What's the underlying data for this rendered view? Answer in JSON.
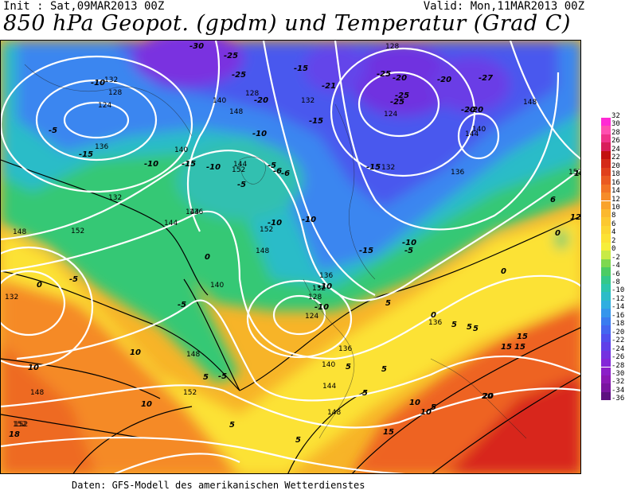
{
  "header": {
    "init": "Init : Sat,09MAR2013 00Z",
    "valid": "Valid: Mon,11MAR2013 00Z",
    "title": "850 hPa Geopot. (gpdm) und Temperatur (Grad C)"
  },
  "footer": {
    "source": "Daten: GFS-Modell des amerikanischen Wetterdienstes"
  },
  "legend": {
    "values": [
      "32",
      "30",
      "28",
      "26",
      "24",
      "22",
      "20",
      "18",
      "16",
      "14",
      "12",
      "10",
      "8",
      "6",
      "4",
      "2",
      "0",
      "-2",
      "-4",
      "-6",
      "-8",
      "-10",
      "-12",
      "-14",
      "-16",
      "-18",
      "-20",
      "-22",
      "-24",
      "-26",
      "-28",
      "-30",
      "-32",
      "-34",
      "-36"
    ],
    "colors": [
      "#ff2ad4",
      "#ff4fb0",
      "#f0338a",
      "#d81e5b",
      "#c21010",
      "#d42a18",
      "#e0401c",
      "#ea5a22",
      "#f27426",
      "#f68c2a",
      "#f9a32c",
      "#fbb82e",
      "#fcc830",
      "#fcd632",
      "#fce234",
      "#f6ee3a",
      "#c8ea46",
      "#7ed850",
      "#4ccc64",
      "#34c88a",
      "#2cc6aa",
      "#2cbcc8",
      "#30aee0",
      "#3596ec",
      "#3a7cf0",
      "#4466f0",
      "#5050ee",
      "#6040e8",
      "#7432e0",
      "#8426d8",
      "#8c1ec8",
      "#8a18b4",
      "#7a14a0",
      "#5e1080"
    ]
  },
  "map": {
    "geopotential_labels": [
      "132",
      "128",
      "124",
      "136",
      "140",
      "144",
      "148",
      "152",
      "140",
      "148",
      "152",
      "128",
      "132",
      "136",
      "144",
      "148",
      "152",
      "132",
      "128",
      "124",
      "132",
      "136",
      "140",
      "144",
      "148",
      "152",
      "136",
      "132",
      "140",
      "144",
      "128",
      "124",
      "136",
      "148",
      "144",
      "152",
      "148",
      "152",
      "152",
      "136",
      "148",
      "140",
      "132"
    ],
    "temperature_labels": [
      "-30",
      "-25",
      "-25",
      "-20",
      "-25",
      "-20",
      "-15",
      "-21",
      "-25",
      "-25",
      "-20",
      "-20",
      "-27",
      "-20",
      "-15",
      "-10",
      "-10",
      "-5",
      "-15",
      "-10",
      "-15",
      "-10",
      "-10",
      "-15",
      "-5",
      "-5",
      "-6",
      "-6",
      "-10",
      "-10",
      "-15",
      "-10",
      "-5",
      "-10",
      "-5",
      "0",
      "-5",
      "0",
      "-5",
      "5",
      "0",
      "5",
      "5",
      "5",
      "0",
      "5",
      "10",
      "10",
      "10",
      "5",
      "15",
      "15",
      "20",
      "5",
      "10",
      "18",
      "10",
      "5",
      "15",
      "20",
      "15",
      "5",
      "0",
      "14",
      "12",
      "5",
      "5",
      "6"
    ]
  }
}
